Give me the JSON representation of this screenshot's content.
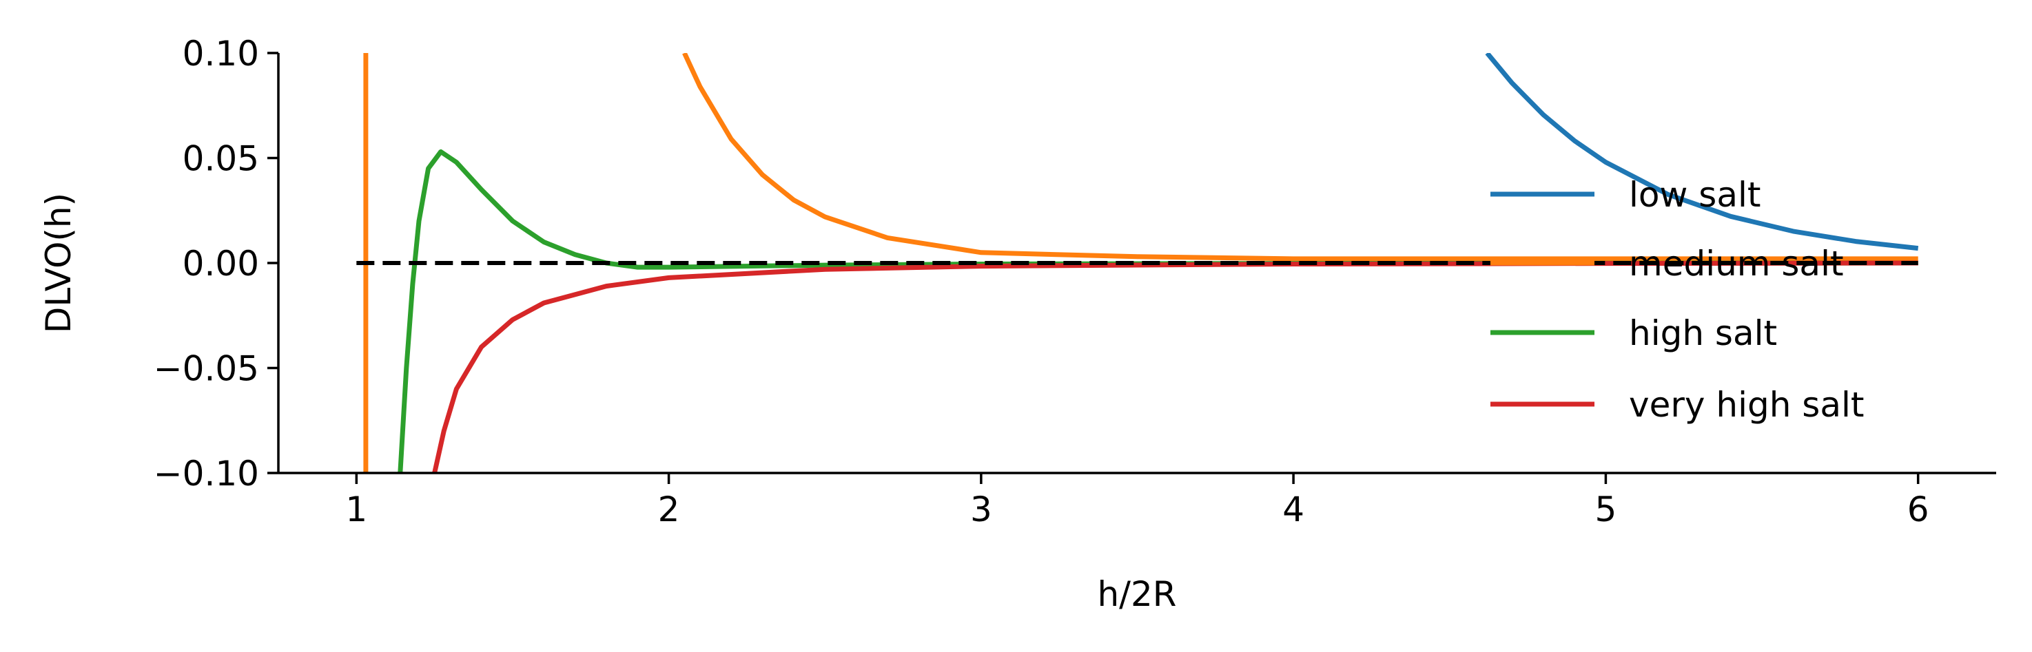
{
  "chart_data": {
    "type": "line",
    "title": "",
    "xlabel": "h/2R",
    "ylabel": "DLVO(h)",
    "xlim": [
      0.75,
      6.25
    ],
    "ylim": [
      -0.1,
      0.1
    ],
    "xticks": [
      1,
      2,
      3,
      4,
      5,
      6
    ],
    "xtick_labels": [
      "1",
      "2",
      "3",
      "4",
      "5",
      "6"
    ],
    "yticks": [
      -0.1,
      -0.05,
      0.0,
      0.05,
      0.1
    ],
    "ytick_labels": [
      "−0.10",
      "−0.05",
      "0.00",
      "0.05",
      "0.10"
    ],
    "grid": false,
    "legend_placement": "right",
    "series": [
      {
        "name": "low salt",
        "color": "#1f77b4",
        "segments": [
          {
            "x": [
              4.62,
              4.7,
              4.8,
              4.9,
              5.0,
              5.2,
              5.4,
              5.6,
              5.8,
              6.0
            ],
            "y": [
              0.1,
              0.0857,
              0.0706,
              0.0582,
              0.048,
              0.0326,
              0.0222,
              0.0151,
              0.0103,
              0.007
            ]
          }
        ]
      },
      {
        "name": "medium salt",
        "color": "#ff7f0e",
        "segments": [
          {
            "x": [
              1.03,
              1.03
            ],
            "y": [
              -0.1,
              0.1
            ]
          },
          {
            "x": [
              2.05,
              2.1,
              2.2,
              2.3,
              2.4,
              2.5,
              2.7,
              3.0,
              3.5,
              4.0,
              5.0,
              6.0
            ],
            "y": [
              0.1,
              0.084,
              0.059,
              0.042,
              0.03,
              0.022,
              0.012,
              0.005,
              0.003,
              0.002,
              0.002,
              0.002
            ]
          }
        ]
      },
      {
        "name": "high salt",
        "color": "#2ca02c",
        "segments": [
          {
            "x": [
              1.14,
              1.16,
              1.18,
              1.2,
              1.23,
              1.27,
              1.32,
              1.4,
              1.5,
              1.6,
              1.7,
              1.8,
              1.9,
              2.0,
              2.5,
              3.0,
              4.0,
              6.0
            ],
            "y": [
              -0.1,
              -0.05,
              -0.01,
              0.02,
              0.045,
              0.053,
              0.048,
              0.035,
              0.02,
              0.01,
              0.004,
              0.0,
              -0.002,
              -0.002,
              -0.001,
              -0.0005,
              -0.0002,
              0.0
            ]
          }
        ]
      },
      {
        "name": "very high salt",
        "color": "#d62728",
        "segments": [
          {
            "x": [
              1.25,
              1.28,
              1.32,
              1.4,
              1.5,
              1.6,
              1.8,
              2.0,
              2.5,
              3.0,
              4.0,
              5.0,
              6.0
            ],
            "y": [
              -0.1,
              -0.08,
              -0.06,
              -0.04,
              -0.027,
              -0.019,
              -0.011,
              -0.007,
              -0.003,
              -0.0015,
              -0.0005,
              -0.0002,
              0.0
            ]
          }
        ]
      }
    ],
    "reference_line": {
      "style": "dashed",
      "color": "#000000",
      "y": 0.0,
      "x": [
        1,
        6
      ]
    }
  }
}
